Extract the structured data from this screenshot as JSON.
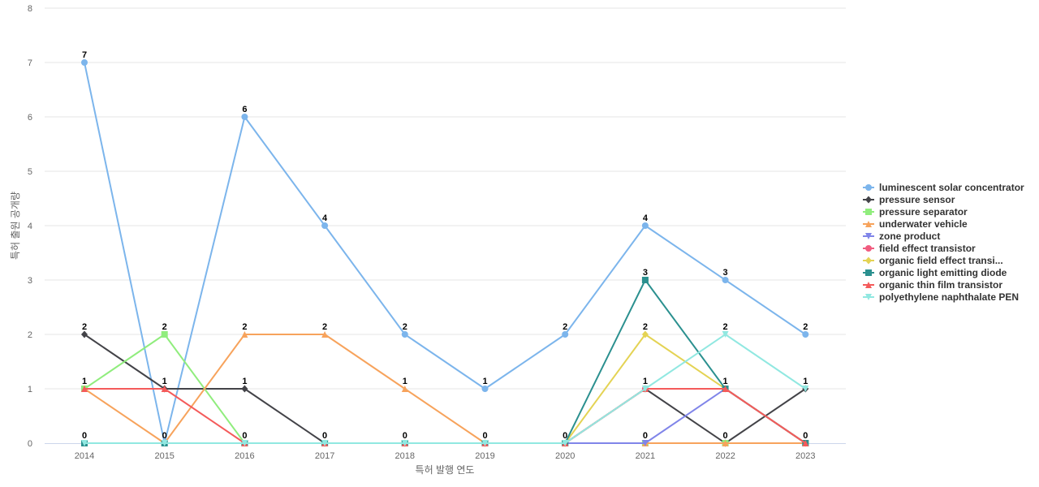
{
  "chart_data": {
    "type": "line",
    "xlabel": "특허 발행 연도",
    "ylabel": "특허 출원 공개량",
    "ylim": [
      0,
      8
    ],
    "y_ticks": [
      "0",
      "1",
      "2",
      "3",
      "4",
      "5",
      "6",
      "7",
      "8"
    ],
    "categories": [
      "2014",
      "2015",
      "2016",
      "2017",
      "2018",
      "2019",
      "2020",
      "2021",
      "2022",
      "2023"
    ],
    "grid": true,
    "legend_position": "right",
    "series": [
      {
        "name": "luminescent solar concentrator",
        "color": "#7cb5ec",
        "marker": "circle",
        "values": [
          7,
          0,
          6,
          4,
          2,
          1,
          2,
          4,
          3,
          2
        ]
      },
      {
        "name": "pressure sensor",
        "color": "#434348",
        "marker": "diamond",
        "values": [
          2,
          1,
          1,
          0,
          0,
          0,
          0,
          1,
          0,
          1
        ]
      },
      {
        "name": "pressure separator",
        "color": "#90ed7d",
        "marker": "square",
        "values": [
          1,
          2,
          0,
          0,
          0,
          0,
          0,
          0,
          0,
          0
        ]
      },
      {
        "name": "underwater vehicle",
        "color": "#f7a35c",
        "marker": "triangle",
        "values": [
          1,
          0,
          2,
          2,
          1,
          0,
          0,
          0,
          0,
          0
        ]
      },
      {
        "name": "zone product",
        "color": "#8085e9",
        "marker": "triangle-down",
        "values": [
          0,
          0,
          0,
          0,
          0,
          0,
          0,
          0,
          1,
          0
        ]
      },
      {
        "name": "field effect transistor",
        "color": "#f15c80",
        "marker": "circle",
        "values": [
          0,
          0,
          0,
          0,
          0,
          0,
          0,
          1,
          1,
          0
        ]
      },
      {
        "name": "organic field effect transi...",
        "color": "#e4d354",
        "marker": "diamond",
        "values": [
          0,
          0,
          0,
          0,
          0,
          0,
          0,
          2,
          1,
          0
        ]
      },
      {
        "name": "organic light emitting diode",
        "color": "#2b908f",
        "marker": "square",
        "values": [
          0,
          0,
          0,
          0,
          0,
          0,
          0,
          3,
          1,
          0
        ]
      },
      {
        "name": "organic thin film transistor",
        "color": "#f45b5b",
        "marker": "triangle",
        "values": [
          1,
          1,
          0,
          0,
          0,
          0,
          0,
          1,
          1,
          0
        ]
      },
      {
        "name": "polyethylene naphthalate PEN",
        "color": "#91e8e1",
        "marker": "triangle-down",
        "values": [
          0,
          0,
          0,
          0,
          0,
          0,
          0,
          1,
          2,
          1
        ]
      }
    ],
    "point_labels": [
      {
        "year": "2014",
        "label": "7",
        "value": 7
      },
      {
        "year": "2014",
        "label": "2",
        "value": 2
      },
      {
        "year": "2014",
        "label": "1",
        "value": 1
      },
      {
        "year": "2014",
        "label": "0",
        "value": 0
      },
      {
        "year": "2015",
        "label": "2",
        "value": 2
      },
      {
        "year": "2015",
        "label": "1",
        "value": 1
      },
      {
        "year": "2015",
        "label": "0",
        "value": 0
      },
      {
        "year": "2016",
        "label": "6",
        "value": 6
      },
      {
        "year": "2016",
        "label": "2",
        "value": 2
      },
      {
        "year": "2016",
        "label": "1",
        "value": 1
      },
      {
        "year": "2016",
        "label": "0",
        "value": 0
      },
      {
        "year": "2017",
        "label": "4",
        "value": 4
      },
      {
        "year": "2017",
        "label": "2",
        "value": 2
      },
      {
        "year": "2017",
        "label": "0",
        "value": 0
      },
      {
        "year": "2018",
        "label": "2",
        "value": 2
      },
      {
        "year": "2018",
        "label": "1",
        "value": 1
      },
      {
        "year": "2018",
        "label": "0",
        "value": 0
      },
      {
        "year": "2019",
        "label": "1",
        "value": 1
      },
      {
        "year": "2019",
        "label": "0",
        "value": 0
      },
      {
        "year": "2020",
        "label": "2",
        "value": 2
      },
      {
        "year": "2020",
        "label": "0",
        "value": 0
      },
      {
        "year": "2021",
        "label": "4",
        "value": 4
      },
      {
        "year": "2021",
        "label": "3",
        "value": 3
      },
      {
        "year": "2021",
        "label": "2",
        "value": 2
      },
      {
        "year": "2021",
        "label": "1",
        "value": 1
      },
      {
        "year": "2021",
        "label": "0",
        "value": 0
      },
      {
        "year": "2022",
        "label": "3",
        "value": 3
      },
      {
        "year": "2022",
        "label": "2",
        "value": 2
      },
      {
        "year": "2022",
        "label": "1",
        "value": 1
      },
      {
        "year": "2022",
        "label": "0",
        "value": 0
      },
      {
        "year": "2023",
        "label": "2",
        "value": 2
      },
      {
        "year": "2023",
        "label": "1",
        "value": 1
      },
      {
        "year": "2023",
        "label": "0",
        "value": 0
      }
    ]
  }
}
